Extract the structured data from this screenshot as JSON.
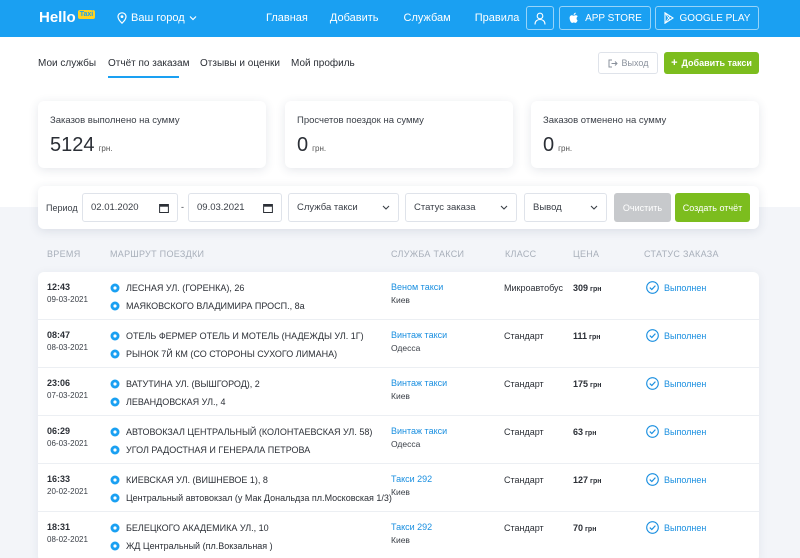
{
  "header": {
    "logo_text": "Hello",
    "logo_badge": "Taxi",
    "city": "Ваш город",
    "nav": [
      "Главная",
      "Добавить",
      "Службам",
      "Правила"
    ],
    "app_store": "APP STORE",
    "google_play": "GOOGLE PLAY"
  },
  "tabs": [
    "Мои службы",
    "Отчёт по заказам",
    "Отзывы и оценки",
    "Мой профиль"
  ],
  "actions": {
    "exit": "Выход",
    "add_taxi": "Добавить такси"
  },
  "stats": [
    {
      "label": "Заказов выполнено на сумму",
      "value": "5124",
      "currency": "грн."
    },
    {
      "label": "Просчетов поездок на сумму",
      "value": "0",
      "currency": "грн."
    },
    {
      "label": "Заказов отменено на сумму",
      "value": "0",
      "currency": "грн."
    }
  ],
  "filters": {
    "period_label": "Период",
    "date_from": "02.01.2020",
    "date_to": "09.03.2021",
    "service": "Служба такси",
    "status": "Статус заказа",
    "output": "Вывод",
    "clear": "Очистить",
    "create": "Создать отчёт"
  },
  "table": {
    "headers": [
      "ВРЕМЯ",
      "МАРШРУТ ПОЕЗДКИ",
      "СЛУЖБА ТАКСИ",
      "КЛАСС",
      "ЦЕНА",
      "СТАТУС ЗАКАЗА"
    ],
    "currency": "грн",
    "rows": [
      {
        "time": "12:43",
        "date": "09-03-2021",
        "from": "ЛЕСНАЯ УЛ. (ГОРЕНКА), 26",
        "to": "МАЯКОВСКОГО ВЛАДИМИРА ПРОСП., 8а",
        "service": "Веном такси",
        "city": "Киев",
        "class": "Микроавтобус",
        "price": "309",
        "status": "Выполнен"
      },
      {
        "time": "08:47",
        "date": "08-03-2021",
        "from": "ОТЕЛЬ ФЕРМЕР ОТЕЛЬ И МОТЕЛЬ (НАДЕЖДЫ УЛ. 1Г)",
        "to": "РЫНОК 7Й КМ (СО СТОРОНЫ СУХОГО ЛИМАНА)",
        "service": "Винтаж такси",
        "city": "Одесса",
        "class": "Стандарт",
        "price": "111",
        "status": "Выполнен"
      },
      {
        "time": "23:06",
        "date": "07-03-2021",
        "from": "ВАТУТИНА УЛ. (ВЫШГОРОД), 2",
        "to": "ЛЕВАНДОВСКАЯ УЛ., 4",
        "service": "Винтаж такси",
        "city": "Киев",
        "class": "Стандарт",
        "price": "175",
        "status": "Выполнен"
      },
      {
        "time": "06:29",
        "date": "06-03-2021",
        "from": "АВТОВОКЗАЛ ЦЕНТРАЛЬНЫЙ (КОЛОНТАЕВСКАЯ УЛ. 58)",
        "to": "УГОЛ РАДОСТНАЯ И ГЕНЕРАЛА ПЕТРОВА",
        "service": "Винтаж такси",
        "city": "Одесса",
        "class": "Стандарт",
        "price": "63",
        "status": "Выполнен"
      },
      {
        "time": "16:33",
        "date": "20-02-2021",
        "from": "КИЕВСКАЯ УЛ. (ВИШНЕВОЕ 1), 8",
        "to": "Центральный автовокзал (у Мак Дональдза пл.Московская 1/3)",
        "service": "Такси 292",
        "city": "Киев",
        "class": "Стандарт",
        "price": "127",
        "status": "Выполнен"
      },
      {
        "time": "18:31",
        "date": "08-02-2021",
        "from": "БЕЛЕЦКОГО АКАДЕМИКА УЛ., 10",
        "to": "ЖД Центральный (пл.Вокзальная )",
        "service": "Такси 292",
        "city": "Киев",
        "class": "Стандарт",
        "price": "70",
        "status": "Выполнен"
      }
    ]
  },
  "colors": {
    "primary": "#1aa0f2",
    "accent": "#7cbd1e",
    "link": "#1a8fe0"
  },
  "icons": {
    "pin": "location-pin-icon",
    "status": "check-circle-icon"
  }
}
